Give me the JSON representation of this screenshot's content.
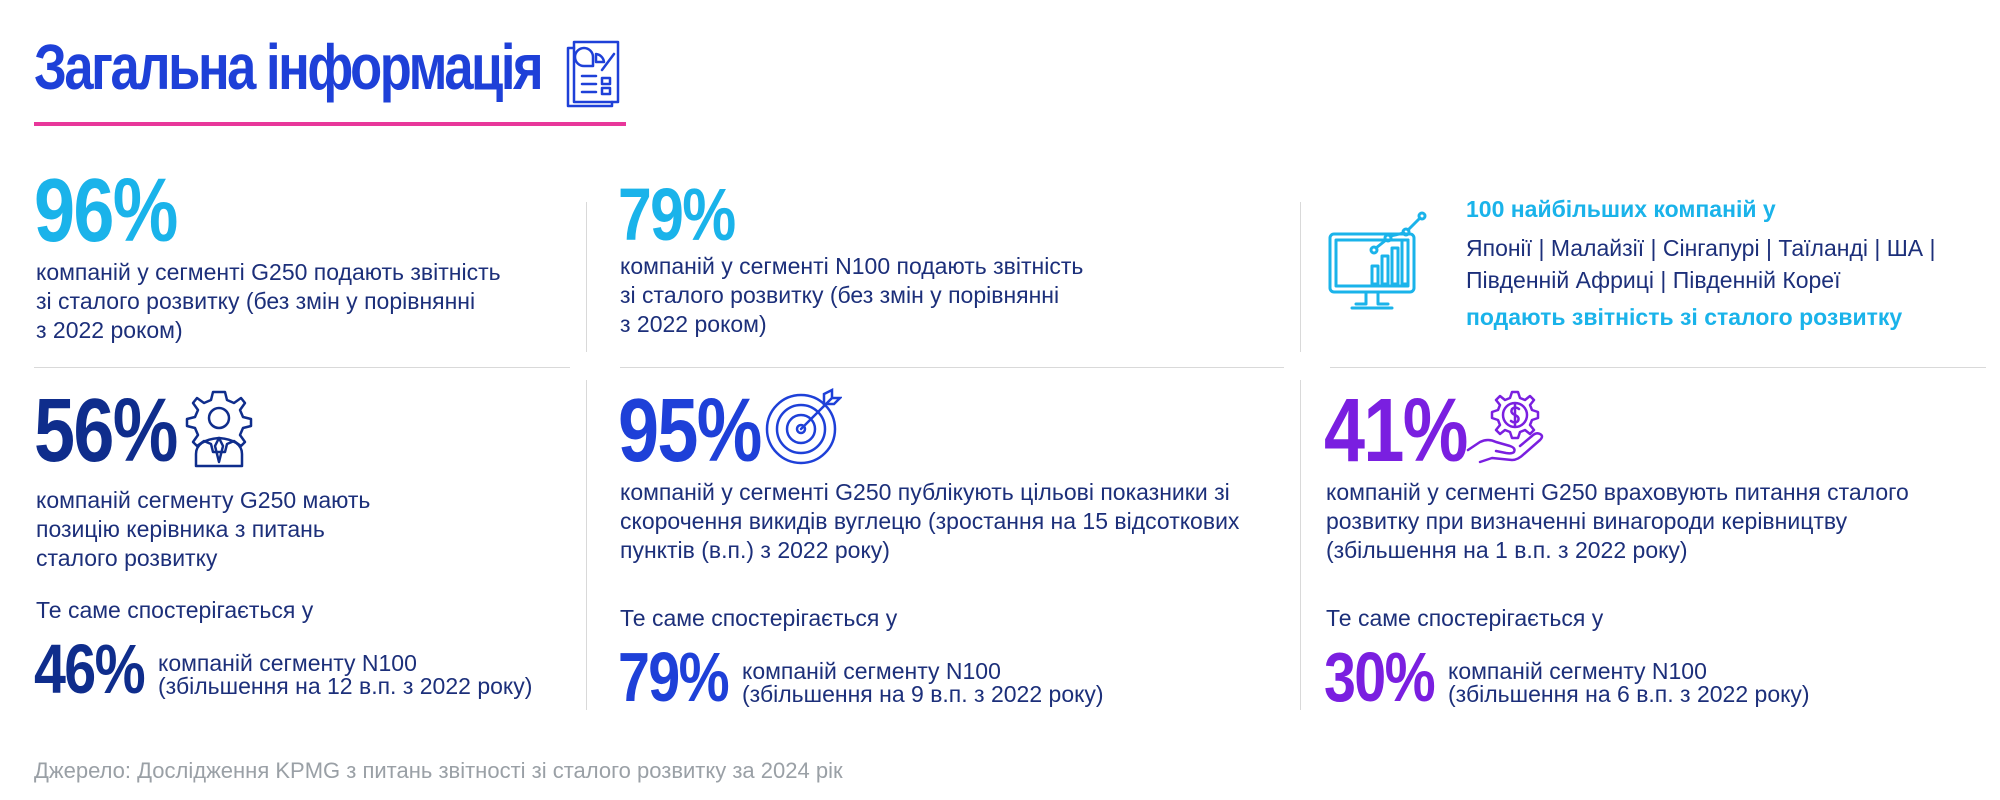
{
  "header": {
    "title": "Загальна інформація"
  },
  "blocks": {
    "b1": {
      "value": "96%",
      "text": [
        "компаній у сегменті G250 подають звітність",
        "зі сталого розвитку (без змін у порівнянні",
        "з 2022 роком)"
      ]
    },
    "b2": {
      "value": "79%",
      "text": [
        "компаній у сегменті N100 подають звітність",
        "зі сталого розвитку (без змін у порівнянні",
        "з 2022 роком)"
      ]
    },
    "b3": {
      "lead": "100 найбільших компаній у",
      "countries": [
        "Японії | Малайзії | Сінгапурі | Таїланді | ША |",
        "Південній Африці | Південній Кореї"
      ],
      "tail": "подають звітність зі сталого розвитку"
    },
    "b4": {
      "value": "56%",
      "text": [
        "компаній сегменту G250 мають",
        "позицію керівника з питань",
        "сталого розвитку"
      ],
      "same": "Те саме спостерігається у",
      "sub_value": "46%",
      "sub_text": [
        "компаній сегменту N100",
        "(збільшення на 12 в.п. з 2022 року)"
      ]
    },
    "b5": {
      "value": "95%",
      "text": [
        "компаній у сегменті G250 публікують цільові показники зі",
        "скорочення викидів вуглецю (зростання на 15 відсоткових",
        "пунктів (в.п.) з 2022 року)"
      ],
      "same": "Те саме спостерігається у",
      "sub_value": "79%",
      "sub_text": [
        "компаній сегменту N100",
        "(збільшення на 9 в.п. з 2022 року)"
      ]
    },
    "b6": {
      "value": "41%",
      "text": [
        "компаній у сегменті G250 враховують питання сталого",
        "розвитку при визначенні винагороди керівництву",
        "(збільшення на 1 в.п. з 2022 року)"
      ],
      "same": "Те саме спостерігається у",
      "sub_value": "30%",
      "sub_text": [
        "компаній сегменту N100",
        "(збільшення на 6 в.п. з 2022 року)"
      ]
    }
  },
  "footer": {
    "source": "Джерело: Дослідження KPMG з питань звітності зі сталого розвитку за 2024 рік"
  },
  "icons": [
    "report-icon",
    "monitor-chart-icon",
    "gear-person-icon",
    "target-icon",
    "hand-money-icon"
  ],
  "colors": {
    "title": "#1e40d8",
    "accent_line": "#e8379a",
    "cyan": "#1ab3ea",
    "navy": "#0f2d8c",
    "blue": "#1e40d8",
    "purple": "#7a1fe0"
  }
}
